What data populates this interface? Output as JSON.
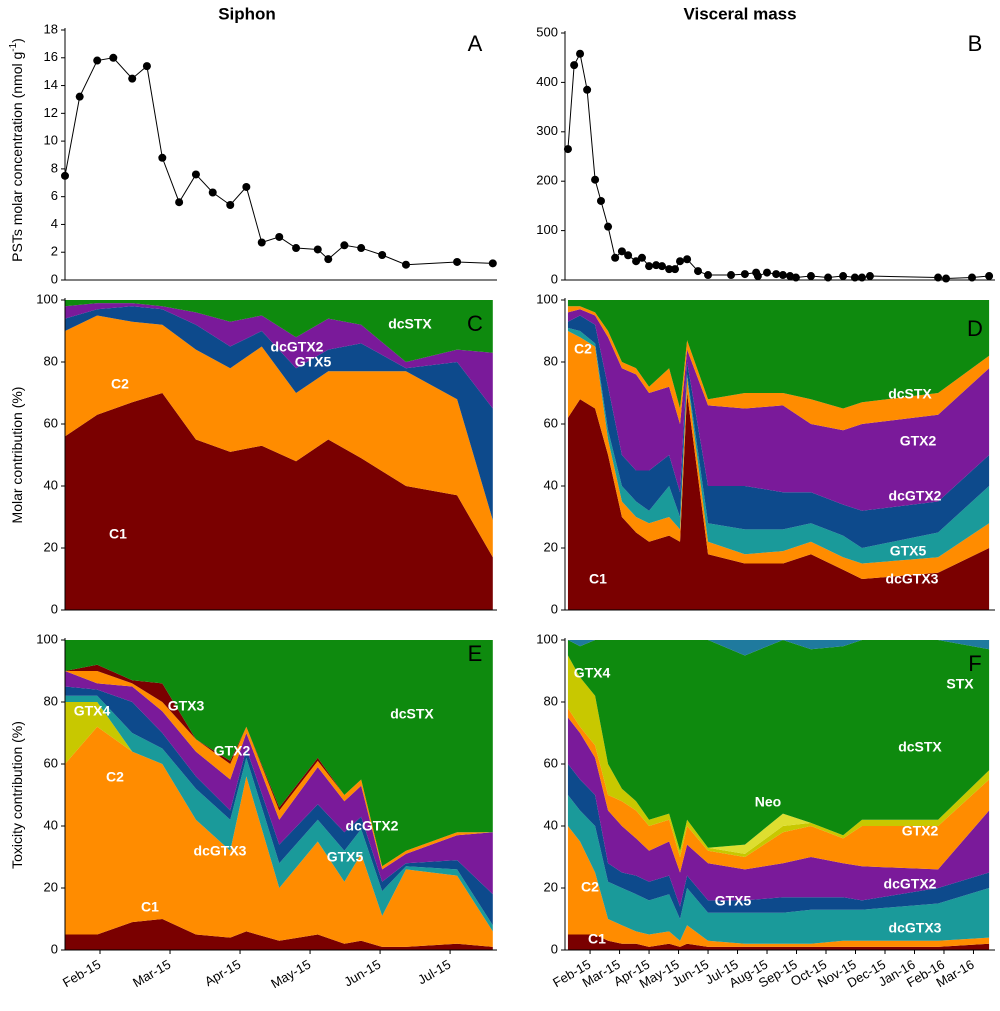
{
  "chart_data": [
    {
      "type": "line",
      "title": "Siphon",
      "panel": "A",
      "ylabel": "PSTs molar concentration (nmol g",
      "ylabel_sup": "-1",
      "ylabel_end": ")",
      "color": "#000000",
      "x": [
        0.5,
        0.71,
        0.96,
        1.19,
        1.46,
        1.67,
        1.89,
        2.13,
        2.37,
        2.61,
        2.86,
        3.09,
        3.31,
        3.56,
        3.8,
        4.11,
        4.26,
        4.49,
        4.73,
        5.03,
        5.37,
        6.1,
        6.61
      ],
      "values": [
        7.5,
        13.2,
        15.8,
        16.0,
        14.5,
        15.4,
        8.8,
        5.6,
        7.6,
        6.3,
        5.4,
        6.7,
        2.7,
        3.1,
        2.3,
        2.2,
        1.5,
        2.5,
        2.3,
        1.8,
        1.1,
        1.3,
        1.2
      ],
      "xlim": [
        0.5,
        6.67
      ],
      "ylim": [
        0,
        18
      ],
      "yticks": [
        0,
        2,
        4,
        6,
        8,
        10,
        12,
        14,
        16,
        18
      ]
    },
    {
      "type": "line",
      "title": "Visceral mass",
      "panel": "B",
      "color": "#000000",
      "x": [
        0.25,
        0.46,
        0.66,
        0.9,
        1.17,
        1.37,
        1.61,
        1.85,
        2.08,
        2.29,
        2.56,
        2.76,
        3.0,
        3.24,
        3.44,
        3.68,
        3.88,
        4.05,
        4.29,
        4.66,
        5.0,
        5.78,
        6.25,
        6.63,
        6.69,
        7.0,
        7.31,
        7.54,
        7.78,
        7.98,
        8.49,
        9.07,
        9.58,
        9.98,
        10.22,
        10.49,
        12.8,
        13.07,
        13.95,
        14.53
      ],
      "values": [
        265,
        435,
        458,
        385,
        203,
        160,
        108,
        45,
        58,
        50,
        38,
        45,
        28,
        30,
        28,
        22,
        22,
        38,
        42,
        18,
        10,
        10,
        12,
        15,
        8,
        15,
        12,
        10,
        8,
        5,
        8,
        5,
        8,
        5,
        5,
        8,
        5,
        3,
        5,
        8
      ],
      "xlim": [
        0.15,
        14.73
      ],
      "ylim": [
        0,
        500
      ],
      "yticks": [
        0,
        100,
        200,
        300,
        400,
        500
      ]
    },
    {
      "type": "stacked_area",
      "panel": "C",
      "ylabel": "Molar contribution (%)",
      "x": [
        0.5,
        0.96,
        1.46,
        1.89,
        2.37,
        2.86,
        3.31,
        3.8,
        4.26,
        4.73,
        5.37,
        6.1,
        6.61
      ],
      "xlim": [
        0.5,
        6.67
      ],
      "ylim": [
        0,
        100
      ],
      "yticks": [
        0,
        20,
        40,
        60,
        80,
        100
      ],
      "series": [
        {
          "name": "C1",
          "color": "#7a0000",
          "values": [
            56,
            63,
            67,
            70,
            55,
            51,
            53,
            48,
            55,
            49,
            40,
            37,
            17
          ]
        },
        {
          "name": "C2",
          "color": "#ff8c00",
          "values": [
            34,
            32,
            26,
            22,
            29,
            27,
            32,
            22,
            22,
            28,
            37,
            31,
            12
          ]
        },
        {
          "name": "GTX5",
          "color": "#0d4a8c",
          "values": [
            4,
            2,
            5,
            5,
            8,
            7,
            5,
            8,
            7,
            9,
            1,
            12,
            36
          ]
        },
        {
          "name": "dcGTX2",
          "color": "#7a1a9a",
          "values": [
            4,
            2,
            1,
            1,
            4,
            8,
            5,
            10,
            10,
            6,
            2,
            4,
            18
          ]
        },
        {
          "name": "dcSTX",
          "color": "#0e8a0e",
          "values": [
            2,
            1,
            1,
            2,
            4,
            7,
            5,
            12,
            6,
            8,
            20,
            16,
            17
          ]
        }
      ]
    },
    {
      "type": "stacked_area",
      "panel": "D",
      "x": [
        0.25,
        0.66,
        1.17,
        1.61,
        2.08,
        2.56,
        3.0,
        3.68,
        4.05,
        4.29,
        5.0,
        6.25,
        7.54,
        8.49,
        9.58,
        10.22,
        12.8,
        14.53
      ],
      "xlim": [
        0.15,
        14.73
      ],
      "ylim": [
        0,
        100
      ],
      "yticks": [
        0,
        20,
        40,
        60,
        80,
        100
      ],
      "series": [
        {
          "name": "C1",
          "color": "#7a0000",
          "values": [
            62,
            68,
            65,
            50,
            30,
            25,
            22,
            24,
            22,
            70,
            18,
            15,
            15,
            18,
            13,
            10,
            12,
            20
          ]
        },
        {
          "name": "C2",
          "color": "#ff8c00",
          "values": [
            28,
            20,
            20,
            5,
            5,
            5,
            6,
            6,
            4,
            5,
            4,
            3,
            4,
            4,
            4,
            5,
            5,
            8
          ]
        },
        {
          "name": "dcGTX3",
          "color": "#1a9a9a",
          "values": [
            1,
            2,
            1,
            3,
            5,
            5,
            4,
            10,
            4,
            1,
            6,
            8,
            7,
            6,
            7,
            5,
            8,
            12
          ]
        },
        {
          "name": "GTX5",
          "color": "#0d4a8c",
          "values": [
            2,
            5,
            6,
            14,
            10,
            10,
            13,
            10,
            8,
            4,
            12,
            14,
            12,
            10,
            10,
            12,
            10,
            10
          ]
        },
        {
          "name": "dcGTX2",
          "color": "#7a1a9a",
          "values": [
            3,
            2,
            3,
            16,
            28,
            31,
            25,
            22,
            22,
            4,
            26,
            25,
            28,
            22,
            24,
            28,
            28,
            28
          ]
        },
        {
          "name": "GTX2",
          "color": "#ff8c00",
          "values": [
            2,
            1,
            1,
            2,
            2,
            2,
            2,
            6,
            5,
            3,
            2,
            5,
            4,
            8,
            7,
            7,
            7,
            4
          ]
        },
        {
          "name": "dcSTX",
          "color": "#0e8a0e",
          "values": [
            2,
            2,
            4,
            10,
            20,
            22,
            28,
            22,
            35,
            13,
            32,
            30,
            30,
            32,
            35,
            33,
            30,
            18
          ]
        }
      ]
    },
    {
      "type": "stacked_area",
      "panel": "E",
      "ylabel": "Toxicity contribution (%)",
      "x": [
        0.5,
        0.96,
        1.46,
        1.89,
        2.37,
        2.86,
        3.09,
        3.56,
        4.11,
        4.49,
        4.73,
        5.03,
        5.37,
        6.1,
        6.61
      ],
      "xlim": [
        0.5,
        6.67
      ],
      "ylim": [
        0,
        100
      ],
      "yticks": [
        0,
        20,
        40,
        60,
        80,
        100
      ],
      "xticks": [
        {
          "value": 1,
          "label": "Feb-15"
        },
        {
          "value": 2,
          "label": "Mar-15"
        },
        {
          "value": 3,
          "label": "Apr-15"
        },
        {
          "value": 4,
          "label": "May-15"
        },
        {
          "value": 5,
          "label": "Jun-15"
        },
        {
          "value": 6,
          "label": "Jul-15"
        }
      ],
      "series": [
        {
          "name": "C1",
          "color": "#7a0000",
          "values": [
            5,
            5,
            9,
            10,
            5,
            4,
            6,
            3,
            5,
            2,
            3,
            1,
            1,
            2,
            1
          ]
        },
        {
          "name": "C2",
          "color": "#ff8c00",
          "values": [
            55,
            67,
            55,
            50,
            37,
            28,
            50,
            17,
            30,
            20,
            28,
            10,
            25,
            22,
            5
          ]
        },
        {
          "name": "GTX4",
          "color": "#c8c800",
          "values": [
            20,
            8,
            0,
            0,
            0,
            0,
            0,
            0,
            0,
            0,
            0,
            0,
            0,
            0,
            0
          ]
        },
        {
          "name": "dcGTX3",
          "color": "#1a9a9a",
          "values": [
            2,
            2,
            6,
            5,
            10,
            10,
            6,
            8,
            7,
            10,
            8,
            8,
            1,
            2,
            2
          ]
        },
        {
          "name": "GTX5",
          "color": "#0d4a8c",
          "values": [
            3,
            2,
            10,
            5,
            4,
            3,
            3,
            6,
            5,
            6,
            4,
            3,
            1,
            3,
            10
          ]
        },
        {
          "name": "dcGTX2",
          "color": "#7a1a9a",
          "values": [
            5,
            2,
            5,
            7,
            8,
            10,
            5,
            8,
            12,
            10,
            10,
            4,
            3,
            8,
            20
          ]
        },
        {
          "name": "GTX2",
          "color": "#ff8c00",
          "values": [
            0,
            4,
            1,
            3,
            4,
            5,
            2,
            3,
            2,
            2,
            2,
            1,
            1,
            1,
            0
          ]
        },
        {
          "name": "GTX3",
          "color": "#7a0000",
          "values": [
            0,
            2,
            1,
            6,
            0,
            1,
            0,
            1,
            1,
            0,
            0,
            0,
            0,
            0,
            0
          ]
        },
        {
          "name": "dcSTX",
          "color": "#0e8a0e",
          "values": [
            10,
            8,
            13,
            14,
            32,
            39,
            28,
            54,
            38,
            50,
            45,
            73,
            68,
            62,
            62
          ]
        }
      ]
    },
    {
      "type": "stacked_area",
      "panel": "F",
      "x": [
        0.25,
        0.66,
        1.17,
        1.61,
        2.08,
        2.56,
        3.0,
        3.68,
        4.05,
        4.29,
        5.0,
        6.25,
        7.54,
        8.49,
        9.58,
        10.22,
        12.8,
        14.53
      ],
      "xlim": [
        0.15,
        14.73
      ],
      "ylim": [
        0,
        100
      ],
      "yticks": [
        0,
        20,
        40,
        60,
        80,
        100
      ],
      "xticks": [
        {
          "value": 1,
          "label": "Feb-15"
        },
        {
          "value": 2,
          "label": "Mar-15"
        },
        {
          "value": 3,
          "label": "Apr-15"
        },
        {
          "value": 4,
          "label": "May-15"
        },
        {
          "value": 5,
          "label": "Jun-15"
        },
        {
          "value": 6,
          "label": "Jul-15"
        },
        {
          "value": 7,
          "label": "Aug-15"
        },
        {
          "value": 8,
          "label": "Sep-15"
        },
        {
          "value": 9,
          "label": "Oct-15"
        },
        {
          "value": 10,
          "label": "Nov-15"
        },
        {
          "value": 11,
          "label": "Dec-15"
        },
        {
          "value": 12,
          "label": "Jan-16"
        },
        {
          "value": 13,
          "label": "Feb-16"
        },
        {
          "value": 14,
          "label": "Mar-16"
        }
      ],
      "series": [
        {
          "name": "C1",
          "color": "#7a0000",
          "values": [
            5,
            5,
            5,
            3,
            2,
            2,
            1,
            2,
            1,
            2,
            1,
            1,
            1,
            1,
            1,
            1,
            1,
            2
          ]
        },
        {
          "name": "C2",
          "color": "#ff8c00",
          "values": [
            35,
            30,
            20,
            7,
            6,
            4,
            4,
            4,
            2,
            6,
            2,
            1,
            1,
            1,
            2,
            2,
            2,
            2
          ]
        },
        {
          "name": "dcGTX3",
          "color": "#1a9a9a",
          "values": [
            10,
            10,
            15,
            12,
            12,
            12,
            11,
            12,
            7,
            12,
            9,
            10,
            10,
            11,
            10,
            10,
            12,
            16
          ]
        },
        {
          "name": "GTX5",
          "color": "#0d4a8c",
          "values": [
            10,
            10,
            10,
            6,
            5,
            6,
            6,
            6,
            4,
            4,
            4,
            4,
            5,
            4,
            4,
            3,
            5,
            5
          ]
        },
        {
          "name": "dcGTX2",
          "color": "#7a1a9a",
          "values": [
            15,
            15,
            12,
            17,
            15,
            12,
            10,
            11,
            11,
            10,
            12,
            10,
            11,
            13,
            11,
            11,
            6,
            20
          ]
        },
        {
          "name": "GTX2",
          "color": "#ff8c00",
          "values": [
            3,
            2,
            4,
            5,
            8,
            9,
            8,
            7,
            5,
            6,
            4,
            4,
            10,
            10,
            8,
            13,
            14,
            10
          ]
        },
        {
          "name": "GTX4",
          "color": "#c8c800",
          "values": [
            17,
            16,
            16,
            10,
            4,
            3,
            2,
            2,
            2,
            2,
            1,
            1,
            2,
            1,
            1,
            2,
            2,
            3
          ]
        },
        {
          "name": "Neo",
          "color": "#dede30",
          "values": [
            0,
            0,
            0,
            0,
            0,
            0,
            0,
            0,
            0,
            0,
            0,
            3,
            4,
            0,
            0,
            0,
            0,
            0
          ]
        },
        {
          "name": "dcSTX",
          "color": "#0e8a0e",
          "values": [
            5,
            10,
            18,
            40,
            48,
            52,
            58,
            56,
            68,
            58,
            67,
            61,
            56,
            56,
            61,
            58,
            58,
            39
          ]
        },
        {
          "name": "STX",
          "color": "#1f7a9e",
          "values": [
            0,
            2,
            0,
            0,
            0,
            0,
            0,
            0,
            0,
            0,
            0,
            5,
            0,
            3,
            2,
            0,
            0,
            3
          ]
        }
      ]
    }
  ]
}
